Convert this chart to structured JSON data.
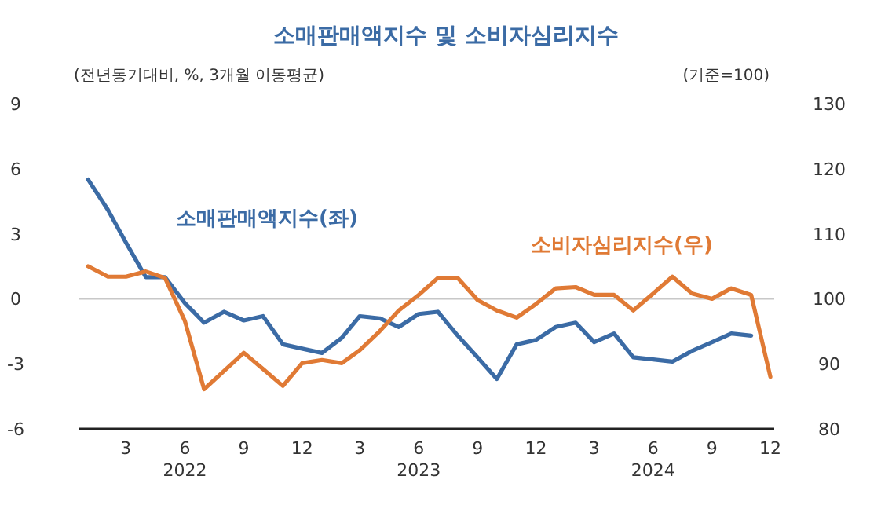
{
  "chart_data": {
    "type": "line",
    "title": "소매판매액지수 및 소비자심리지수",
    "ylabel": "(전년동기대비, %, 3개월 이동평균)",
    "y2label": "(기준=100)",
    "x": [
      "2022-01",
      "2022-02",
      "2022-03",
      "2022-04",
      "2022-05",
      "2022-06",
      "2022-07",
      "2022-08",
      "2022-09",
      "2022-10",
      "2022-11",
      "2022-12",
      "2023-01",
      "2023-02",
      "2023-03",
      "2023-04",
      "2023-05",
      "2023-06",
      "2023-07",
      "2023-08",
      "2023-09",
      "2023-10",
      "2023-11",
      "2023-12",
      "2024-01",
      "2024-02",
      "2024-03",
      "2024-04",
      "2024-05",
      "2024-06",
      "2024-07",
      "2024-08",
      "2024-09",
      "2024-10",
      "2024-11",
      "2024-12"
    ],
    "xlim": [
      "2021-12-17",
      "2024-12-07"
    ],
    "xticks": [
      {
        "value": "2022-03",
        "label": "3"
      },
      {
        "value": "2022-06",
        "label": "6\n2022"
      },
      {
        "value": "2022-09",
        "label": "9"
      },
      {
        "value": "2022-12",
        "label": "12"
      },
      {
        "value": "2023-03",
        "label": "3"
      },
      {
        "value": "2023-06",
        "label": "6\n2023"
      },
      {
        "value": "2023-09",
        "label": "9"
      },
      {
        "value": "2023-12",
        "label": "12"
      },
      {
        "value": "2024-03",
        "label": "3"
      },
      {
        "value": "2024-06",
        "label": "6\n2024"
      },
      {
        "value": "2024-09",
        "label": "9"
      },
      {
        "value": "2024-12",
        "label": "12"
      }
    ],
    "ylim": [
      -6,
      9
    ],
    "yticks": [
      -6,
      -3,
      0,
      3,
      6,
      9
    ],
    "y2lim": [
      80,
      130
    ],
    "y2ticks": [
      80,
      90,
      100,
      110,
      120,
      130
    ],
    "series": [
      {
        "name": "소매판매액지수(좌)",
        "color": "#3b6ba5",
        "values": [
          5.5,
          4.1,
          2.6,
          1.0,
          1.0,
          -0.2,
          -1.1,
          -0.6,
          -1.0,
          -0.8,
          -2.1,
          -2.3,
          -2.5,
          -1.8,
          -0.8,
          -0.9,
          -1.3,
          -0.7,
          -0.6,
          -1.7,
          -2.7,
          -3.7,
          -2.1,
          -1.9,
          -1.3,
          -1.1,
          -2.0,
          -1.6,
          -2.7,
          -2.8,
          -2.9,
          -2.4,
          -2.0,
          -1.6,
          -1.7,
          null
        ]
      },
      {
        "name": "소비자심리지수(우)",
        "color": "#e07a35",
        "axis": "y2",
        "values": [
          105.0,
          103.4,
          103.4,
          104.2,
          103.2,
          96.6,
          86.1,
          88.9,
          91.7,
          89.2,
          86.6,
          90.1,
          90.6,
          90.1,
          92.1,
          95.0,
          98.2,
          100.6,
          103.2,
          103.2,
          99.8,
          98.2,
          97.1,
          99.2,
          101.6,
          101.8,
          100.6,
          100.6,
          98.2,
          100.8,
          103.4,
          100.8,
          100.0,
          101.6,
          100.6,
          88.0
        ]
      }
    ],
    "ref_lines": [
      {
        "axis": "y",
        "value": 0,
        "color": "#c8c8c8"
      }
    ],
    "legend": false
  }
}
